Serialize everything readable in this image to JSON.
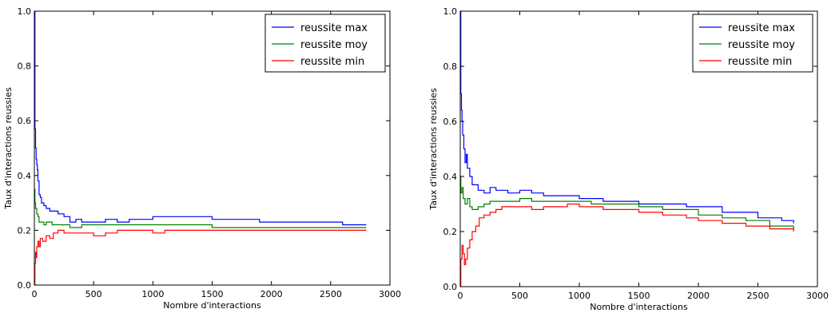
{
  "chart_data": [
    {
      "type": "line",
      "xlabel": "Nombre d'interactions",
      "ylabel": "Taux d'interactions reussies",
      "xlim": [
        0,
        3000
      ],
      "ylim": [
        0.0,
        1.0
      ],
      "xticks": [
        "0",
        "500",
        "1000",
        "1500",
        "2000",
        "2500",
        "3000"
      ],
      "yticks": [
        "0.0",
        "0.2",
        "0.4",
        "0.6",
        "0.8",
        "1.0"
      ],
      "grid": false,
      "legend_position": "top-right",
      "series": [
        {
          "name": "reussite max",
          "color": "#0000ff",
          "points": [
            [
              0,
              1.0
            ],
            [
              5,
              0.57
            ],
            [
              10,
              0.5
            ],
            [
              15,
              0.46
            ],
            [
              20,
              0.44
            ],
            [
              25,
              0.42
            ],
            [
              30,
              0.38
            ],
            [
              40,
              0.33
            ],
            [
              50,
              0.32
            ],
            [
              60,
              0.3
            ],
            [
              80,
              0.29
            ],
            [
              100,
              0.28
            ],
            [
              130,
              0.27
            ],
            [
              160,
              0.27
            ],
            [
              200,
              0.26
            ],
            [
              250,
              0.25
            ],
            [
              300,
              0.23
            ],
            [
              350,
              0.24
            ],
            [
              400,
              0.23
            ],
            [
              500,
              0.23
            ],
            [
              600,
              0.24
            ],
            [
              700,
              0.23
            ],
            [
              800,
              0.24
            ],
            [
              900,
              0.24
            ],
            [
              1000,
              0.25
            ],
            [
              1200,
              0.25
            ],
            [
              1400,
              0.25
            ],
            [
              1500,
              0.24
            ],
            [
              1700,
              0.24
            ],
            [
              1900,
              0.23
            ],
            [
              2200,
              0.23
            ],
            [
              2500,
              0.23
            ],
            [
              2600,
              0.22
            ],
            [
              2800,
              0.22
            ]
          ]
        },
        {
          "name": "reussite moy",
          "color": "#008000",
          "points": [
            [
              0,
              0.35
            ],
            [
              5,
              0.3
            ],
            [
              10,
              0.28
            ],
            [
              20,
              0.26
            ],
            [
              30,
              0.25
            ],
            [
              40,
              0.23
            ],
            [
              60,
              0.23
            ],
            [
              80,
              0.22
            ],
            [
              100,
              0.23
            ],
            [
              150,
              0.22
            ],
            [
              200,
              0.22
            ],
            [
              300,
              0.21
            ],
            [
              400,
              0.22
            ],
            [
              500,
              0.22
            ],
            [
              700,
              0.22
            ],
            [
              900,
              0.22
            ],
            [
              1000,
              0.22
            ],
            [
              1200,
              0.22
            ],
            [
              1400,
              0.22
            ],
            [
              1500,
              0.21
            ],
            [
              1800,
              0.21
            ],
            [
              2000,
              0.21
            ],
            [
              2500,
              0.21
            ],
            [
              2800,
              0.21
            ]
          ]
        },
        {
          "name": "reussite min",
          "color": "#ff0000",
          "points": [
            [
              0,
              0.0
            ],
            [
              5,
              0.08
            ],
            [
              10,
              0.12
            ],
            [
              15,
              0.1
            ],
            [
              20,
              0.14
            ],
            [
              30,
              0.16
            ],
            [
              40,
              0.14
            ],
            [
              50,
              0.17
            ],
            [
              70,
              0.16
            ],
            [
              100,
              0.18
            ],
            [
              130,
              0.17
            ],
            [
              160,
              0.19
            ],
            [
              200,
              0.2
            ],
            [
              250,
              0.19
            ],
            [
              300,
              0.19
            ],
            [
              400,
              0.19
            ],
            [
              500,
              0.18
            ],
            [
              600,
              0.19
            ],
            [
              700,
              0.2
            ],
            [
              800,
              0.2
            ],
            [
              900,
              0.2
            ],
            [
              1000,
              0.19
            ],
            [
              1100,
              0.2
            ],
            [
              1300,
              0.2
            ],
            [
              1500,
              0.2
            ],
            [
              1800,
              0.2
            ],
            [
              2200,
              0.2
            ],
            [
              2500,
              0.2
            ],
            [
              2800,
              0.2
            ]
          ]
        }
      ]
    },
    {
      "type": "line",
      "xlabel": "Nombre d'interactions",
      "ylabel": "Taux d'interactions reussies",
      "xlim": [
        0,
        3000
      ],
      "ylim": [
        0.0,
        1.0
      ],
      "xticks": [
        "0",
        "500",
        "1000",
        "1500",
        "2000",
        "2500",
        "3000"
      ],
      "yticks": [
        "0.0",
        "0.2",
        "0.4",
        "0.6",
        "0.8",
        "1.0"
      ],
      "grid": false,
      "legend_position": "top-right",
      "series": [
        {
          "name": "reussite max",
          "color": "#0000ff",
          "points": [
            [
              0,
              1.0
            ],
            [
              5,
              0.7
            ],
            [
              10,
              0.64
            ],
            [
              15,
              0.6
            ],
            [
              20,
              0.55
            ],
            [
              30,
              0.5
            ],
            [
              40,
              0.45
            ],
            [
              50,
              0.48
            ],
            [
              60,
              0.43
            ],
            [
              80,
              0.4
            ],
            [
              100,
              0.37
            ],
            [
              150,
              0.35
            ],
            [
              200,
              0.34
            ],
            [
              250,
              0.36
            ],
            [
              300,
              0.35
            ],
            [
              400,
              0.34
            ],
            [
              500,
              0.35
            ],
            [
              600,
              0.34
            ],
            [
              700,
              0.33
            ],
            [
              900,
              0.33
            ],
            [
              1000,
              0.32
            ],
            [
              1100,
              0.32
            ],
            [
              1200,
              0.31
            ],
            [
              1400,
              0.31
            ],
            [
              1500,
              0.3
            ],
            [
              1700,
              0.3
            ],
            [
              1900,
              0.29
            ],
            [
              2200,
              0.27
            ],
            [
              2500,
              0.25
            ],
            [
              2700,
              0.24
            ],
            [
              2800,
              0.23
            ]
          ]
        },
        {
          "name": "reussite moy",
          "color": "#008000",
          "points": [
            [
              0,
              0.4
            ],
            [
              5,
              0.34
            ],
            [
              15,
              0.36
            ],
            [
              25,
              0.32
            ],
            [
              40,
              0.3
            ],
            [
              60,
              0.32
            ],
            [
              80,
              0.29
            ],
            [
              100,
              0.28
            ],
            [
              150,
              0.29
            ],
            [
              200,
              0.3
            ],
            [
              250,
              0.31
            ],
            [
              300,
              0.31
            ],
            [
              400,
              0.31
            ],
            [
              500,
              0.32
            ],
            [
              600,
              0.31
            ],
            [
              700,
              0.31
            ],
            [
              900,
              0.31
            ],
            [
              1000,
              0.31
            ],
            [
              1100,
              0.3
            ],
            [
              1300,
              0.3
            ],
            [
              1500,
              0.29
            ],
            [
              1700,
              0.28
            ],
            [
              1900,
              0.28
            ],
            [
              2000,
              0.26
            ],
            [
              2200,
              0.25
            ],
            [
              2400,
              0.24
            ],
            [
              2600,
              0.22
            ],
            [
              2800,
              0.21
            ]
          ]
        },
        {
          "name": "reussite min",
          "color": "#ff0000",
          "points": [
            [
              0,
              0.0
            ],
            [
              5,
              0.1
            ],
            [
              15,
              0.15
            ],
            [
              25,
              0.12
            ],
            [
              35,
              0.08
            ],
            [
              45,
              0.1
            ],
            [
              60,
              0.14
            ],
            [
              80,
              0.17
            ],
            [
              100,
              0.2
            ],
            [
              130,
              0.22
            ],
            [
              160,
              0.25
            ],
            [
              200,
              0.26
            ],
            [
              250,
              0.27
            ],
            [
              300,
              0.28
            ],
            [
              350,
              0.29
            ],
            [
              400,
              0.29
            ],
            [
              500,
              0.29
            ],
            [
              600,
              0.28
            ],
            [
              700,
              0.29
            ],
            [
              800,
              0.29
            ],
            [
              900,
              0.3
            ],
            [
              1000,
              0.29
            ],
            [
              1100,
              0.29
            ],
            [
              1200,
              0.28
            ],
            [
              1300,
              0.28
            ],
            [
              1500,
              0.27
            ],
            [
              1700,
              0.26
            ],
            [
              1900,
              0.25
            ],
            [
              2000,
              0.24
            ],
            [
              2200,
              0.23
            ],
            [
              2400,
              0.22
            ],
            [
              2600,
              0.21
            ],
            [
              2800,
              0.2
            ]
          ]
        }
      ]
    }
  ]
}
